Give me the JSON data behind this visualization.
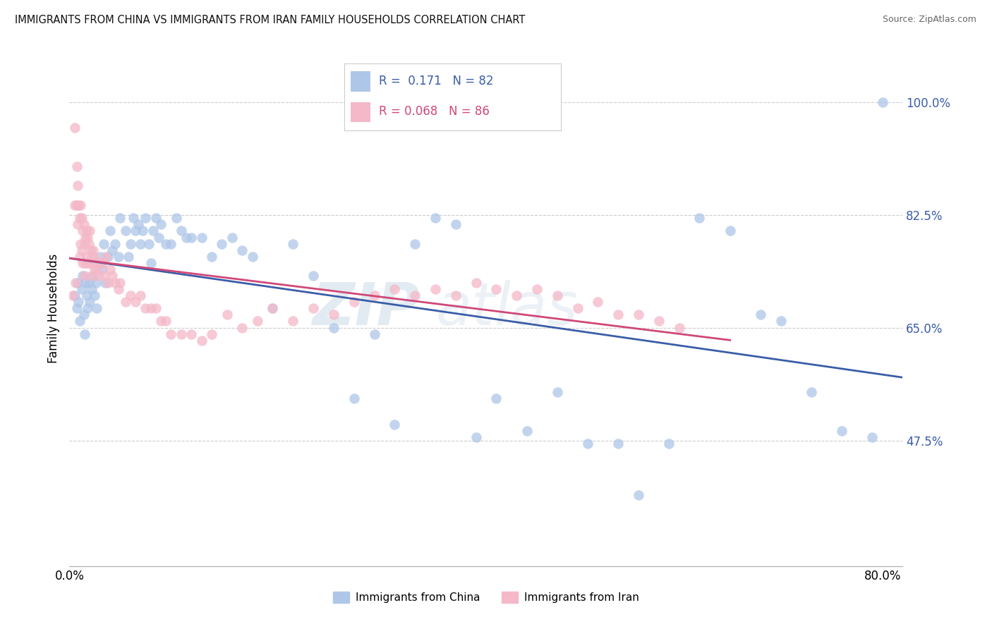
{
  "title": "IMMIGRANTS FROM CHINA VS IMMIGRANTS FROM IRAN FAMILY HOUSEHOLDS CORRELATION CHART",
  "source": "Source: ZipAtlas.com",
  "ylabel": "Family Households",
  "china_color": "#aec6e8",
  "iran_color": "#f4b8c8",
  "china_line_color": "#3a5da8",
  "iran_line_color": "#d04878",
  "china_R": 0.171,
  "china_N": 82,
  "iran_R": 0.068,
  "iran_N": 86,
  "ytick_vals": [
    0.475,
    0.65,
    0.825,
    1.0
  ],
  "ytick_labels": [
    "47.5%",
    "65.0%",
    "82.5%",
    "100.0%"
  ],
  "xlim": [
    0.0,
    0.82
  ],
  "ylim": [
    0.28,
    1.08
  ],
  "china_x": [
    0.005,
    0.007,
    0.008,
    0.009,
    0.01,
    0.012,
    0.013,
    0.014,
    0.015,
    0.016,
    0.017,
    0.018,
    0.019,
    0.02,
    0.022,
    0.023,
    0.025,
    0.026,
    0.027,
    0.03,
    0.032,
    0.034,
    0.035,
    0.038,
    0.04,
    0.042,
    0.045,
    0.048,
    0.05,
    0.055,
    0.058,
    0.06,
    0.063,
    0.065,
    0.068,
    0.07,
    0.072,
    0.075,
    0.078,
    0.08,
    0.082,
    0.085,
    0.088,
    0.09,
    0.095,
    0.1,
    0.105,
    0.11,
    0.115,
    0.12,
    0.13,
    0.14,
    0.15,
    0.16,
    0.17,
    0.18,
    0.2,
    0.22,
    0.24,
    0.26,
    0.28,
    0.3,
    0.32,
    0.34,
    0.36,
    0.38,
    0.4,
    0.42,
    0.45,
    0.48,
    0.51,
    0.54,
    0.56,
    0.59,
    0.62,
    0.65,
    0.68,
    0.7,
    0.73,
    0.76,
    0.79,
    0.8
  ],
  "china_y": [
    0.7,
    0.68,
    0.72,
    0.69,
    0.66,
    0.71,
    0.73,
    0.67,
    0.64,
    0.72,
    0.7,
    0.68,
    0.72,
    0.69,
    0.71,
    0.73,
    0.7,
    0.72,
    0.68,
    0.76,
    0.74,
    0.78,
    0.72,
    0.76,
    0.8,
    0.77,
    0.78,
    0.76,
    0.82,
    0.8,
    0.76,
    0.78,
    0.82,
    0.8,
    0.81,
    0.78,
    0.8,
    0.82,
    0.78,
    0.75,
    0.8,
    0.82,
    0.79,
    0.81,
    0.78,
    0.78,
    0.82,
    0.8,
    0.79,
    0.79,
    0.79,
    0.76,
    0.78,
    0.79,
    0.77,
    0.76,
    0.68,
    0.78,
    0.73,
    0.65,
    0.54,
    0.64,
    0.5,
    0.78,
    0.82,
    0.81,
    0.48,
    0.54,
    0.49,
    0.55,
    0.47,
    0.47,
    0.39,
    0.47,
    0.82,
    0.8,
    0.67,
    0.66,
    0.55,
    0.49,
    0.48,
    1.0
  ],
  "iran_x": [
    0.003,
    0.005,
    0.005,
    0.006,
    0.007,
    0.007,
    0.008,
    0.008,
    0.009,
    0.01,
    0.01,
    0.011,
    0.011,
    0.012,
    0.012,
    0.013,
    0.013,
    0.014,
    0.015,
    0.015,
    0.016,
    0.016,
    0.017,
    0.017,
    0.018,
    0.018,
    0.019,
    0.02,
    0.02,
    0.021,
    0.022,
    0.022,
    0.023,
    0.024,
    0.025,
    0.026,
    0.027,
    0.028,
    0.03,
    0.032,
    0.034,
    0.036,
    0.038,
    0.04,
    0.042,
    0.045,
    0.048,
    0.05,
    0.055,
    0.06,
    0.065,
    0.07,
    0.075,
    0.08,
    0.085,
    0.09,
    0.095,
    0.1,
    0.11,
    0.12,
    0.13,
    0.14,
    0.155,
    0.17,
    0.185,
    0.2,
    0.22,
    0.24,
    0.26,
    0.28,
    0.3,
    0.32,
    0.34,
    0.36,
    0.38,
    0.4,
    0.42,
    0.44,
    0.46,
    0.48,
    0.5,
    0.52,
    0.54,
    0.56,
    0.58,
    0.6
  ],
  "iran_y": [
    0.7,
    0.96,
    0.84,
    0.72,
    0.9,
    0.84,
    0.87,
    0.81,
    0.84,
    0.82,
    0.76,
    0.84,
    0.78,
    0.82,
    0.77,
    0.8,
    0.75,
    0.81,
    0.78,
    0.73,
    0.79,
    0.75,
    0.8,
    0.76,
    0.79,
    0.75,
    0.78,
    0.8,
    0.75,
    0.77,
    0.76,
    0.73,
    0.77,
    0.76,
    0.74,
    0.75,
    0.74,
    0.73,
    0.75,
    0.75,
    0.73,
    0.76,
    0.72,
    0.74,
    0.73,
    0.72,
    0.71,
    0.72,
    0.69,
    0.7,
    0.69,
    0.7,
    0.68,
    0.68,
    0.68,
    0.66,
    0.66,
    0.64,
    0.64,
    0.64,
    0.63,
    0.64,
    0.67,
    0.65,
    0.66,
    0.68,
    0.66,
    0.68,
    0.67,
    0.69,
    0.7,
    0.71,
    0.7,
    0.71,
    0.7,
    0.72,
    0.71,
    0.7,
    0.71,
    0.7,
    0.68,
    0.69,
    0.67,
    0.67,
    0.66,
    0.65
  ]
}
